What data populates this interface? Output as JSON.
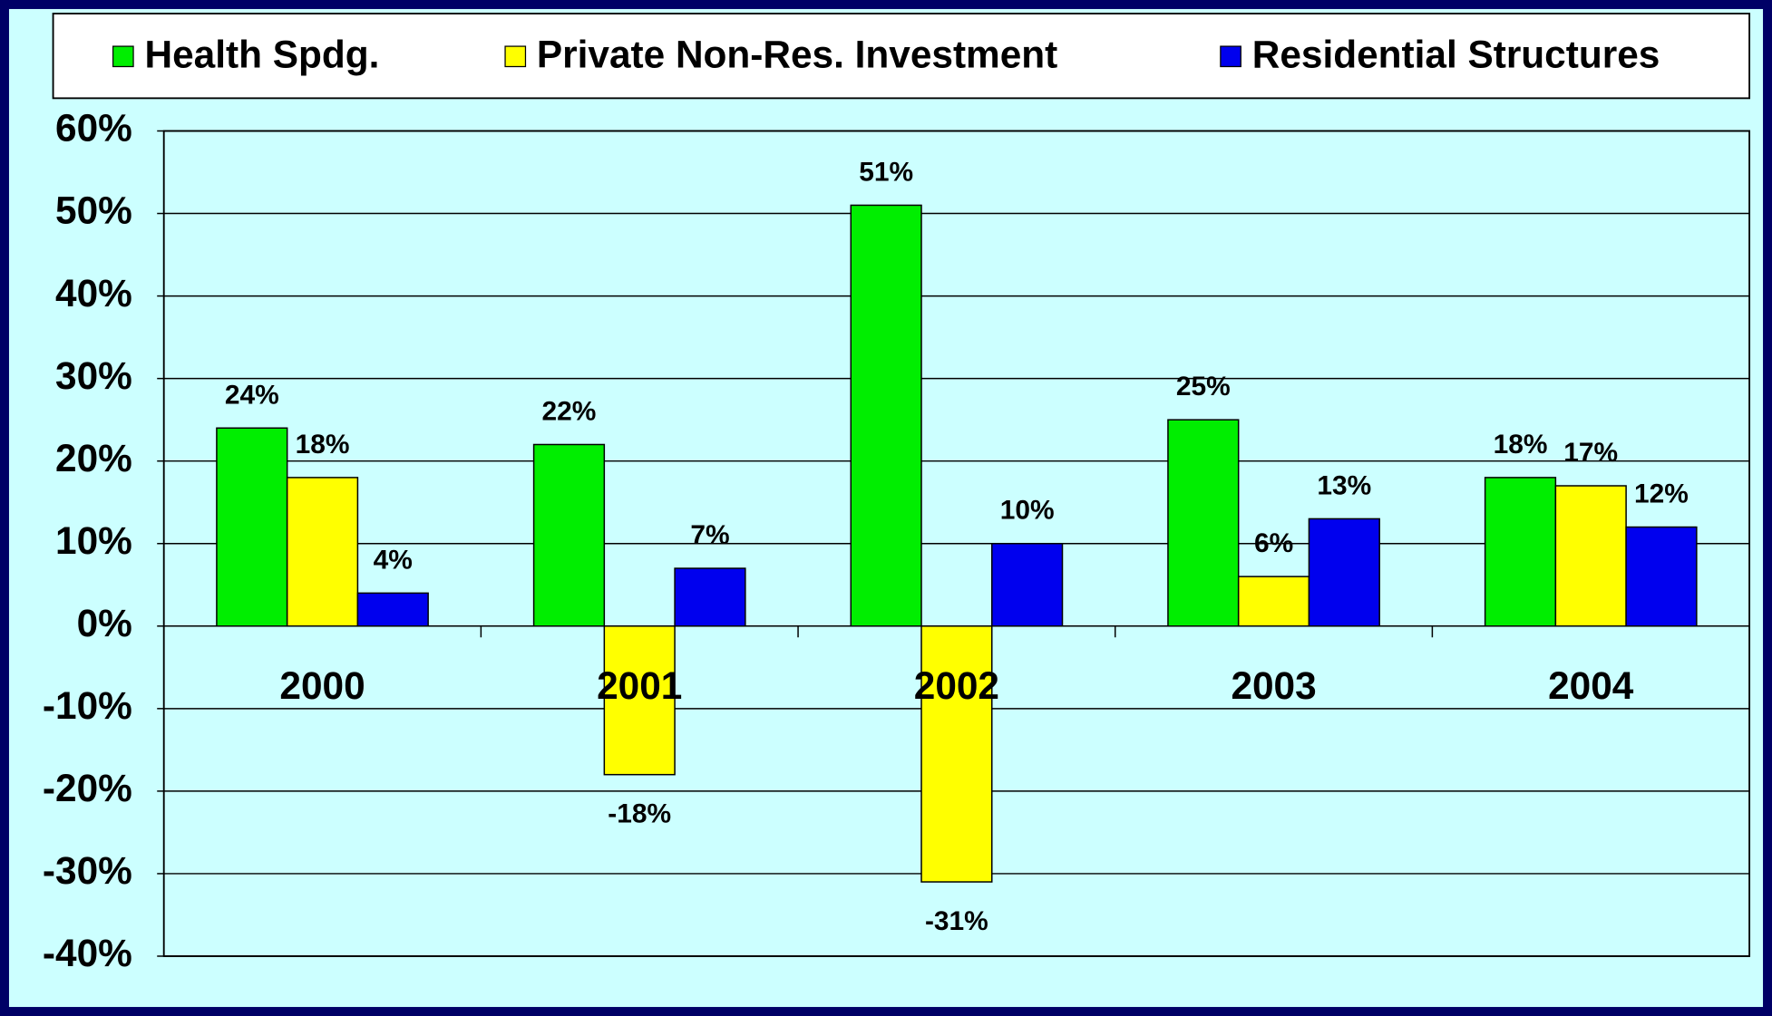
{
  "chart_data": {
    "type": "bar",
    "categories": [
      "2000",
      "2001",
      "2002",
      "2003",
      "2004"
    ],
    "series": [
      {
        "name": "Health Spdg.",
        "color": "#00ee00",
        "values": [
          24,
          22,
          51,
          25,
          18
        ],
        "value_labels": [
          "24%",
          "22%",
          "51%",
          "25%",
          "18%"
        ]
      },
      {
        "name": "Private Non-Res. Investment",
        "color": "#ffff00",
        "values": [
          18,
          -18,
          -31,
          6,
          17
        ],
        "value_labels": [
          "18%",
          "-18%",
          "-31%",
          "6%",
          "17%"
        ]
      },
      {
        "name": "Residential Structures",
        "color": "#0000ee",
        "values": [
          4,
          7,
          10,
          13,
          12
        ],
        "value_labels": [
          "4%",
          "7%",
          "10%",
          "13%",
          "12%"
        ]
      }
    ],
    "ylim": [
      -40,
      60
    ],
    "yticks": [
      {
        "value": -40,
        "label": "-40%"
      },
      {
        "value": -30,
        "label": "-30%"
      },
      {
        "value": -20,
        "label": "-20%"
      },
      {
        "value": -10,
        "label": "-10%"
      },
      {
        "value": 0,
        "label": "0%"
      },
      {
        "value": 10,
        "label": "10%"
      },
      {
        "value": 20,
        "label": "20%"
      },
      {
        "value": 30,
        "label": "30%"
      },
      {
        "value": 40,
        "label": "40%"
      },
      {
        "value": 50,
        "label": "50%"
      },
      {
        "value": 60,
        "label": "60%"
      }
    ],
    "grid": true,
    "legend": "top"
  }
}
